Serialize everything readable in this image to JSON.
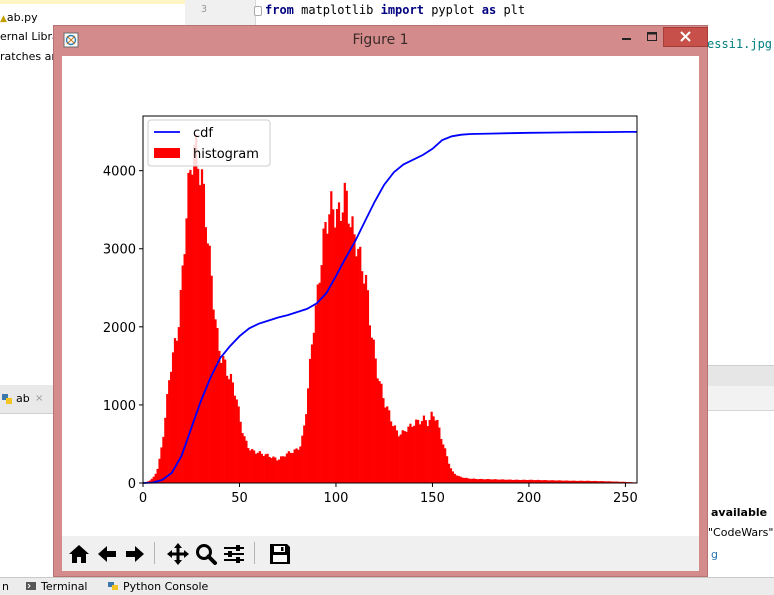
{
  "ide": {
    "project_items": [
      "ab.py",
      "ernal Libra",
      "ratches and"
    ],
    "line_number": "3",
    "code": {
      "kw1": "from",
      "mid1": " matplotlib ",
      "kw2": "import",
      "mid2": " pyplot ",
      "kw3": "as",
      "end": " plt"
    },
    "code_fragment_right": "essi1.jpg'",
    "run_tab_label": "ab",
    "run_tab_close": "×",
    "right_panel_heading": "available",
    "right_panel_line": "\"CodeWars\"",
    "right_panel_link": "g",
    "bottom_tabs": [
      "Terminal",
      "Python Console"
    ],
    "bottom_left_fragment": "n"
  },
  "window": {
    "title": "Figure 1",
    "minimize_icon": "minimize-icon",
    "maximize_icon": "maximize-icon",
    "close_icon": "close-icon"
  },
  "toolbar": {
    "tools": [
      "home-icon",
      "back-icon",
      "forward-icon",
      "pan-icon",
      "zoom-icon",
      "configure-subplots-icon",
      "save-icon"
    ]
  },
  "colors": {
    "histogram": "#ff0000",
    "cdf": "#0000ff",
    "window_frame": "#d38c8b",
    "close_button": "#c7504a"
  },
  "chart_data": {
    "type": "bar",
    "title": "",
    "xlabel": "",
    "ylabel": "",
    "xlim": [
      0,
      256
    ],
    "ylim": [
      0,
      4700
    ],
    "x_ticks": [
      0,
      50,
      100,
      150,
      200,
      250
    ],
    "y_ticks": [
      0,
      1000,
      2000,
      3000,
      4000
    ],
    "legend": {
      "placement": "upper-left",
      "entries": [
        {
          "label": "cdf",
          "kind": "line"
        },
        {
          "label": "histogram",
          "kind": "patch"
        }
      ]
    },
    "series": [
      {
        "name": "histogram",
        "type": "bar",
        "color": "#ff0000",
        "x": [
          0,
          2,
          4,
          6,
          8,
          10,
          12,
          14,
          16,
          18,
          20,
          22,
          24,
          26,
          28,
          30,
          32,
          34,
          36,
          38,
          40,
          42,
          44,
          46,
          48,
          50,
          52,
          54,
          56,
          58,
          60,
          62,
          64,
          66,
          68,
          70,
          72,
          74,
          76,
          78,
          80,
          82,
          84,
          86,
          88,
          90,
          92,
          94,
          96,
          98,
          100,
          102,
          104,
          106,
          108,
          110,
          112,
          114,
          116,
          118,
          120,
          122,
          124,
          126,
          128,
          130,
          132,
          134,
          136,
          138,
          140,
          142,
          144,
          146,
          148,
          150,
          152,
          154,
          156,
          158,
          160,
          162,
          164,
          166,
          168,
          170,
          175,
          180,
          185,
          190,
          195,
          200,
          205,
          210,
          215,
          220,
          225,
          230,
          235,
          240,
          245,
          250,
          255
        ],
        "values": [
          0,
          15,
          40,
          90,
          220,
          520,
          950,
          1450,
          1700,
          1950,
          2500,
          3300,
          3900,
          4300,
          4200,
          3950,
          3600,
          3000,
          2500,
          1950,
          1650,
          1550,
          1400,
          1300,
          1150,
          850,
          620,
          480,
          420,
          400,
          390,
          370,
          360,
          340,
          320,
          300,
          330,
          370,
          390,
          410,
          430,
          500,
          800,
          1350,
          1950,
          2300,
          2800,
          3200,
          3450,
          3550,
          3450,
          3400,
          3700,
          3600,
          3250,
          3150,
          2900,
          2750,
          2500,
          2000,
          1650,
          1350,
          1150,
          980,
          860,
          720,
          640,
          620,
          690,
          710,
          760,
          780,
          800,
          820,
          760,
          900,
          820,
          640,
          460,
          300,
          150,
          110,
          80,
          70,
          60,
          55,
          50,
          48,
          45,
          42,
          40,
          40,
          38,
          35,
          33,
          30,
          28,
          28,
          25,
          22,
          18,
          14,
          8
        ]
      },
      {
        "name": "cdf",
        "type": "line",
        "color": "#0000ff",
        "x": [
          0,
          5,
          10,
          15,
          20,
          25,
          30,
          35,
          40,
          45,
          50,
          55,
          60,
          65,
          70,
          75,
          80,
          85,
          90,
          95,
          100,
          105,
          110,
          115,
          120,
          125,
          130,
          135,
          140,
          145,
          150,
          155,
          160,
          165,
          170,
          180,
          190,
          200,
          210,
          220,
          230,
          240,
          250,
          256
        ],
        "values": [
          0,
          5,
          40,
          130,
          350,
          700,
          1050,
          1350,
          1600,
          1750,
          1880,
          1980,
          2040,
          2080,
          2120,
          2150,
          2190,
          2230,
          2300,
          2430,
          2650,
          2880,
          3100,
          3350,
          3600,
          3820,
          3980,
          4080,
          4140,
          4200,
          4280,
          4390,
          4440,
          4460,
          4470,
          4475,
          4480,
          4485,
          4488,
          4490,
          4492,
          4494,
          4496,
          4497
        ]
      }
    ]
  }
}
